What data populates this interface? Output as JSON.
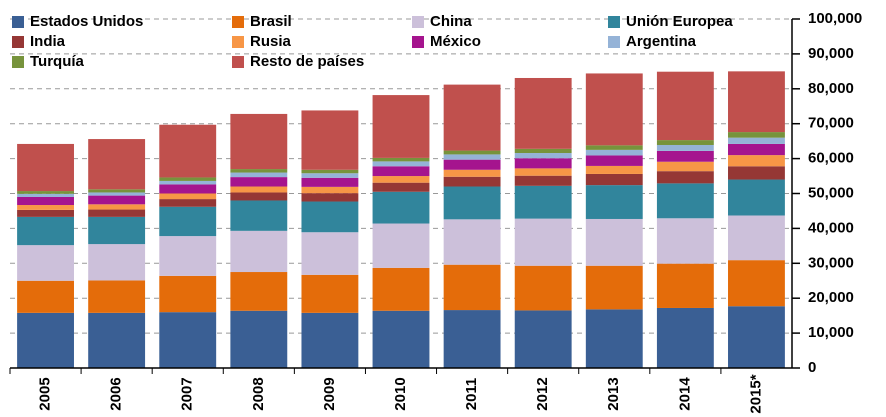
{
  "chart_data": {
    "type": "bar",
    "stacked": true,
    "grid": true,
    "legend": "top-left",
    "categories": [
      "2005",
      "2006",
      "2007",
      "2008",
      "2009",
      "2010",
      "2011",
      "2012",
      "2013",
      "2014",
      "2015*"
    ],
    "ylim": [
      0,
      100000
    ],
    "yticks": [
      {
        "value": 0,
        "label": "0"
      },
      {
        "value": 10000,
        "label": "10,000"
      },
      {
        "value": 20000,
        "label": "20,000"
      },
      {
        "value": 30000,
        "label": "30,000"
      },
      {
        "value": 40000,
        "label": "40,000"
      },
      {
        "value": 50000,
        "label": "50,000"
      },
      {
        "value": 60000,
        "label": "60,000"
      },
      {
        "value": 70000,
        "label": "70,000"
      },
      {
        "value": 80000,
        "label": "80,000"
      },
      {
        "value": 90000,
        "label": "90,000"
      },
      {
        "value": 100000,
        "label": "100,000"
      }
    ],
    "series": [
      {
        "name": "Estados Unidos",
        "color": "#3a5f94",
        "values": [
          15800,
          15800,
          16000,
          16400,
          15800,
          16400,
          16600,
          16500,
          16800,
          17200,
          17700
        ]
      },
      {
        "name": "Brasil",
        "color": "#e46c0a",
        "values": [
          9200,
          9300,
          10400,
          11100,
          10900,
          12300,
          13000,
          12800,
          12500,
          12700,
          13200
        ]
      },
      {
        "name": "China",
        "color": "#ccc0da",
        "values": [
          10200,
          10400,
          11400,
          11800,
          12200,
          12700,
          13000,
          13500,
          13400,
          13000,
          12800
        ]
      },
      {
        "name": "Unión Europea",
        "color": "#31859c",
        "values": [
          8100,
          7800,
          8400,
          8700,
          8800,
          9100,
          9400,
          9400,
          9700,
          10000,
          10300
        ]
      },
      {
        "name": "India",
        "color": "#953735",
        "values": [
          2000,
          2100,
          2200,
          2300,
          2400,
          2600,
          2800,
          2900,
          3200,
          3500,
          3800
        ]
      },
      {
        "name": "Rusia",
        "color": "#f79646",
        "values": [
          1400,
          1500,
          1600,
          1700,
          1800,
          1900,
          2000,
          2100,
          2300,
          2700,
          3200
        ]
      },
      {
        "name": "México",
        "color": "#a5148e",
        "values": [
          2300,
          2500,
          2600,
          2700,
          2600,
          2800,
          2900,
          2900,
          3000,
          3100,
          3200
        ]
      },
      {
        "name": "Argentina",
        "color": "#95b3d7",
        "values": [
          900,
          900,
          1000,
          1300,
          1300,
          1400,
          1500,
          1500,
          1600,
          1700,
          1800
        ]
      },
      {
        "name": "Turquía",
        "color": "#77933c",
        "values": [
          800,
          900,
          1000,
          1000,
          1000,
          1000,
          1100,
          1200,
          1300,
          1400,
          1600
        ]
      },
      {
        "name": "Resto de países",
        "color": "#c0504d",
        "values": [
          13500,
          14400,
          15100,
          15800,
          17000,
          18000,
          18900,
          20300,
          20600,
          19600,
          17400
        ]
      }
    ]
  }
}
